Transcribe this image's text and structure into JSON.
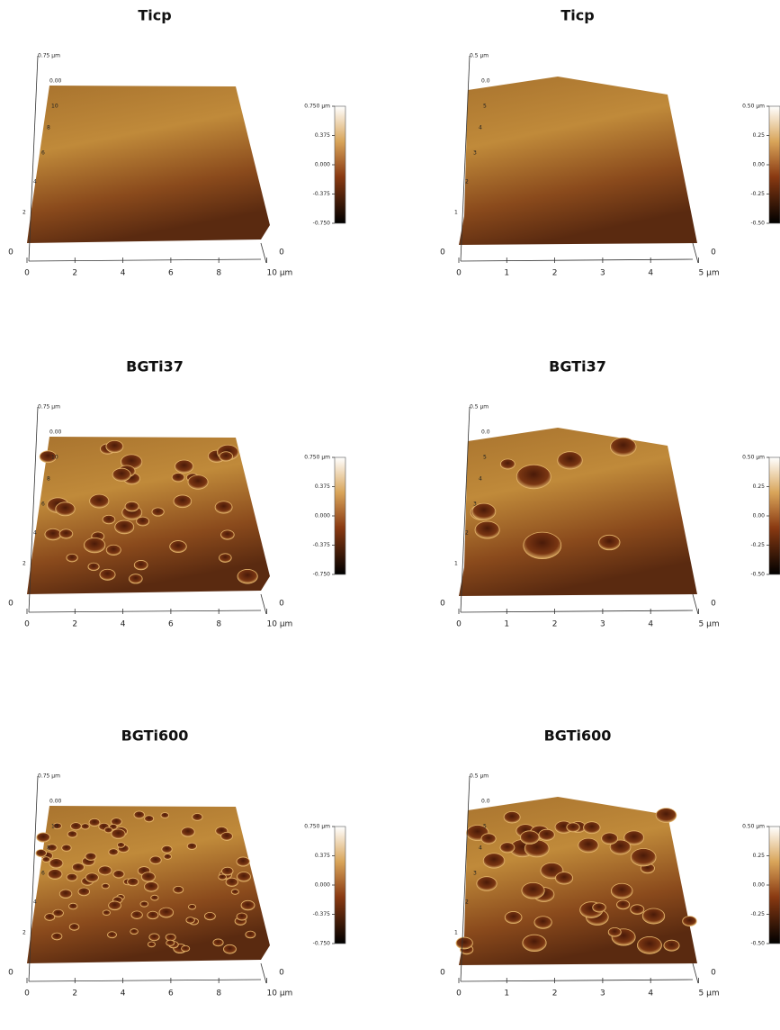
{
  "panels": [
    {
      "title": "Ticp",
      "z_top": "0.75 µm",
      "z_zero": "0.00",
      "y_ticks": [
        "2",
        "4",
        "6",
        "8",
        "10"
      ],
      "x_ticks": [
        "0",
        "2",
        "4",
        "6",
        "8",
        "10 µm"
      ],
      "corner_left": "0",
      "corner_right": "0",
      "colorbar": [
        "0.750 µm",
        "0.375",
        "0.000",
        "-0.375",
        "-0.750"
      ]
    },
    {
      "title": "Ticp",
      "z_top": "0.5 µm",
      "z_zero": "0.0",
      "y_ticks": [
        "1",
        "2",
        "3",
        "4",
        "5"
      ],
      "x_ticks": [
        "0",
        "1",
        "2",
        "3",
        "4",
        "5 µm"
      ],
      "corner_left": "0",
      "corner_right": "0",
      "colorbar": [
        "0.50 µm",
        "0.25",
        "0.00",
        "-0.25",
        "-0.50"
      ]
    },
    {
      "title": "BGTi37",
      "z_top": "0.75 µm",
      "z_zero": "0.00",
      "y_ticks": [
        "2",
        "4",
        "6",
        "8",
        "10"
      ],
      "x_ticks": [
        "0",
        "2",
        "4",
        "6",
        "8",
        "10 µm"
      ],
      "corner_left": "0",
      "corner_right": "0",
      "colorbar": [
        "0.750 µm",
        "0.375",
        "0.000",
        "-0.375",
        "-0.750"
      ]
    },
    {
      "title": "BGTi37",
      "z_top": "0.5 µm",
      "z_zero": "0.0",
      "y_ticks": [
        "1",
        "2",
        "3",
        "4",
        "5"
      ],
      "x_ticks": [
        "0",
        "1",
        "2",
        "3",
        "4",
        "5 µm"
      ],
      "corner_left": "0",
      "corner_right": "0",
      "colorbar": [
        "0.50 µm",
        "0.25",
        "0.00",
        "-0.25",
        "-0.50"
      ]
    },
    {
      "title": "BGTi600",
      "z_top": "0.75 µm",
      "z_zero": "0.00",
      "y_ticks": [
        "2",
        "4",
        "6",
        "8",
        "10"
      ],
      "x_ticks": [
        "0",
        "2",
        "4",
        "6",
        "8",
        "10 µm"
      ],
      "corner_left": "0",
      "corner_right": "0",
      "colorbar": [
        "0.750 µm",
        "0.375",
        "0.000",
        "-0.375",
        "-0.750"
      ]
    },
    {
      "title": "BGTi600",
      "z_top": "0.5 µm",
      "z_zero": "0.0",
      "y_ticks": [
        "1",
        "2",
        "3",
        "4",
        "5"
      ],
      "x_ticks": [
        "0",
        "1",
        "2",
        "3",
        "4",
        "5 µm"
      ],
      "corner_left": "0",
      "corner_right": "0",
      "colorbar": [
        "0.50 µm",
        "0.25",
        "0.00",
        "-0.25",
        "-0.50"
      ]
    }
  ]
}
